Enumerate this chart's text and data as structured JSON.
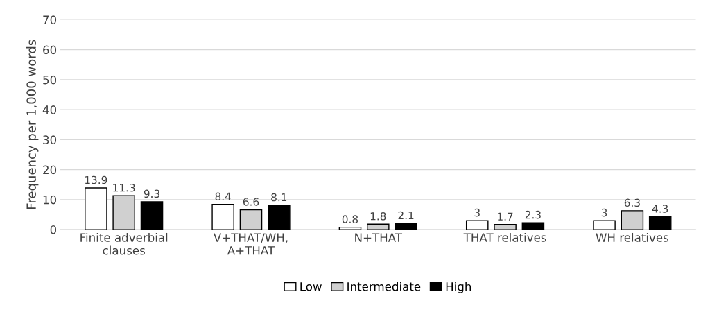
{
  "chart_data": {
    "type": "bar",
    "ylabel": "Frequency per 1,000 words",
    "categories": [
      "Finite adverbial\nclauses",
      "V+THAT/WH,\nA+THAT",
      "N+THAT",
      "THAT relatives",
      "WH relatives"
    ],
    "series": [
      {
        "name": "Low",
        "color": "#ffffff",
        "values": [
          13.9,
          8.4,
          0.8,
          3,
          3
        ]
      },
      {
        "name": "Intermediate",
        "color": "#d0d0d0",
        "values": [
          11.3,
          6.6,
          1.8,
          1.7,
          6.3
        ]
      },
      {
        "name": "High",
        "color": "#000000",
        "values": [
          9.3,
          8.1,
          2.1,
          2.3,
          4.3
        ]
      }
    ],
    "ylim": [
      0,
      70
    ],
    "yticks": [
      0,
      10,
      20,
      30,
      40,
      50,
      60,
      70
    ],
    "grid": "y",
    "legend": "bottom",
    "data_labels": true
  }
}
